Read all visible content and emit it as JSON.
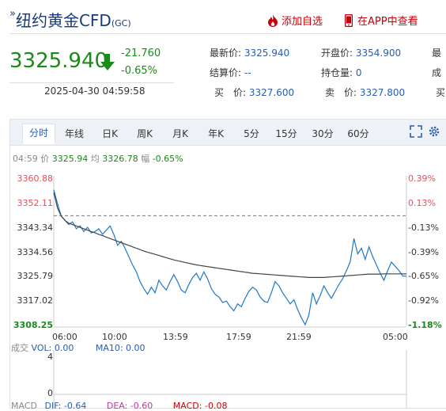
{
  "header": {
    "title_prefix": "»",
    "title": "纽约黄金CFD",
    "code": "(GC)",
    "add_favorite": "添加自选",
    "view_in_app": "在APP中查看"
  },
  "quote": {
    "price": "3325.940",
    "change": "-21.760",
    "change_pct": "-0.65%",
    "datetime": "2025-04-30 04:59:58",
    "fields": [
      {
        "label": "最新价:",
        "value": "3325.940"
      },
      {
        "label": "开盘价:",
        "value": "3354.900"
      },
      {
        "label": "最",
        "value": ""
      },
      {
        "label": "结算价:",
        "value": "--"
      },
      {
        "label": "持仓量:",
        "value": "0"
      },
      {
        "label": "成",
        "value": ""
      },
      {
        "label": "买　价:",
        "value": "3327.600"
      },
      {
        "label": "卖　价:",
        "value": "3327.800"
      },
      {
        "label": "买",
        "value": ""
      }
    ],
    "down_color": "#1a8a1a"
  },
  "tabs": [
    "分时",
    "年线",
    "日K",
    "周K",
    "月K",
    "年K",
    "5分",
    "15分",
    "30分",
    "60分"
  ],
  "active_tab": "分时",
  "info": {
    "time": "04:59",
    "price_label": "价",
    "price": "3325.94",
    "avg_label": "均",
    "avg": "3326.78",
    "amp_label": "幅",
    "amp": "-0.65%"
  },
  "volume": {
    "label": "成交",
    "vol_label": "VOL:",
    "vol": "0.00",
    "ma_label": "MA10:",
    "ma": "0.00",
    "tick_top": "4",
    "tick_zero": "0"
  },
  "macd": {
    "label": "MACD",
    "dif_label": "DIF:",
    "dif": "-0.64",
    "dea_label": "DEA:",
    "dea": "-0.60",
    "macd_label": "MACD:",
    "macd": "-0.08"
  },
  "chart_data": {
    "type": "line",
    "yticks_left": [
      "3360.88",
      "3352.11",
      "3343.34",
      "3334.56",
      "3325.79",
      "3317.02",
      "3308.25"
    ],
    "yticks_right": [
      "0.39%",
      "0.13%",
      "-0.13%",
      "-0.39%",
      "-0.65%",
      "-0.92%",
      "-1.18%"
    ],
    "xticks": [
      "06:00",
      "10:00",
      "13:59",
      "17:59",
      "21:59",
      "05:00"
    ],
    "ylim": [
      3308.25,
      3360.88
    ],
    "prev_close": 3347.7,
    "series": [
      {
        "values": [
          3357.0,
          3352.0,
          3347.5,
          3346.0,
          3344.5,
          3345.5,
          3343.0,
          3344.0,
          3342.0,
          3343.5,
          3341.5,
          3342.0,
          3343.0,
          3341.0,
          3342.5,
          3344.0,
          3341.0,
          3337.0,
          3338.5,
          3336.0,
          3333.0,
          3330.0,
          3327.5,
          3324.0,
          3321.5,
          3319.5,
          3322.0,
          3320.0,
          3324.5,
          3322.5,
          3321.0,
          3324.0,
          3326.5,
          3324.0,
          3321.0,
          3320.0,
          3323.0,
          3325.5,
          3327.0,
          3324.5,
          3327.5,
          3325.0,
          3321.5,
          3319.5,
          3318.5,
          3316.5,
          3317.0,
          3315.0,
          3313.5,
          3316.0,
          3315.0,
          3318.0,
          3320.5,
          3322.0,
          3321.0,
          3318.5,
          3317.0,
          3316.5,
          3320.0,
          3324.0,
          3322.5,
          3320.0,
          3318.0,
          3316.0,
          3317.5,
          3314.0,
          3311.0,
          3308.5,
          3312.0,
          3320.0,
          3316.0,
          3319.0,
          3322.5,
          3320.0,
          3318.0,
          3320.5,
          3323.0,
          3325.0,
          3328.0,
          3331.0,
          3339.5,
          3334.0,
          3336.0,
          3332.0,
          3336.5,
          3333.0,
          3330.0,
          3327.0,
          3324.5,
          3328.0,
          3331.0,
          3329.5,
          3328.0,
          3326.0,
          3325.94
        ]
      },
      {
        "values": [
          3356.0,
          3350.5,
          3347.5,
          3346.0,
          3345.0,
          3344.5,
          3344.0,
          3343.5,
          3343.0,
          3342.5,
          3342.0,
          3341.5,
          3341.0,
          3340.5,
          3340.0,
          3339.5,
          3339.0,
          3338.5,
          3338.0,
          3337.5,
          3337.0,
          3336.5,
          3336.0,
          3335.5,
          3335.0,
          3334.6,
          3334.2,
          3333.8,
          3333.4,
          3333.0,
          3332.6,
          3332.2,
          3331.8,
          3331.5,
          3331.2,
          3330.9,
          3330.6,
          3330.3,
          3330.0,
          3329.8,
          3329.6,
          3329.4,
          3329.2,
          3329.0,
          3328.8,
          3328.6,
          3328.4,
          3328.2,
          3328.0,
          3327.8,
          3327.6,
          3327.4,
          3327.2,
          3327.0,
          3326.9,
          3326.8,
          3326.7,
          3326.6,
          3326.5,
          3326.4,
          3326.3,
          3326.2,
          3326.1,
          3326.0,
          3325.9,
          3325.8,
          3325.7,
          3325.6,
          3325.5,
          3325.5,
          3325.5,
          3325.5,
          3325.5,
          3325.6,
          3325.7,
          3325.8,
          3325.9,
          3326.0,
          3326.1,
          3326.2,
          3326.3,
          3326.4,
          3326.5,
          3326.6,
          3326.7,
          3326.7,
          3326.7,
          3326.7,
          3326.8,
          3326.8,
          3326.8,
          3326.8,
          3326.8,
          3326.8,
          3326.78
        ]
      }
    ],
    "colors": {
      "price": "#1f78c8",
      "avg": "#444444",
      "up": "#e8505b",
      "down": "#1a8a1a",
      "neutral": "#333333"
    }
  }
}
